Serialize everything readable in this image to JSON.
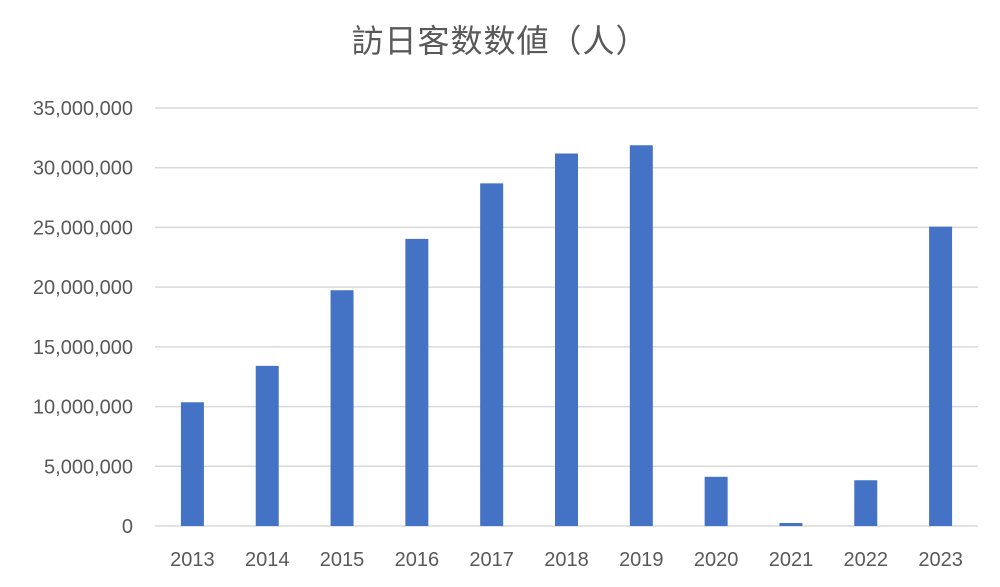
{
  "chart_data": {
    "type": "bar",
    "title": "訪日客数数値（人）",
    "categories": [
      "2013",
      "2014",
      "2015",
      "2016",
      "2017",
      "2018",
      "2019",
      "2020",
      "2021",
      "2022",
      "2023"
    ],
    "series": [
      {
        "values": [
          10360000,
          13410000,
          19740000,
          24040000,
          28690000,
          31190000,
          31880000,
          4120000,
          250000,
          3830000,
          25070000
        ]
      }
    ],
    "y_ticks": [
      "0",
      "5,000,000",
      "10,000,000",
      "15,000,000",
      "20,000,000",
      "25,000,000",
      "30,000,000",
      "35,000,000"
    ],
    "ylim": [
      0,
      35000000
    ],
    "xlabel": "",
    "ylabel": "",
    "grid": true,
    "legend": "none",
    "colors": {
      "bar": "#4472C4",
      "grid": "#D9D9D9",
      "text": "#595959"
    }
  }
}
